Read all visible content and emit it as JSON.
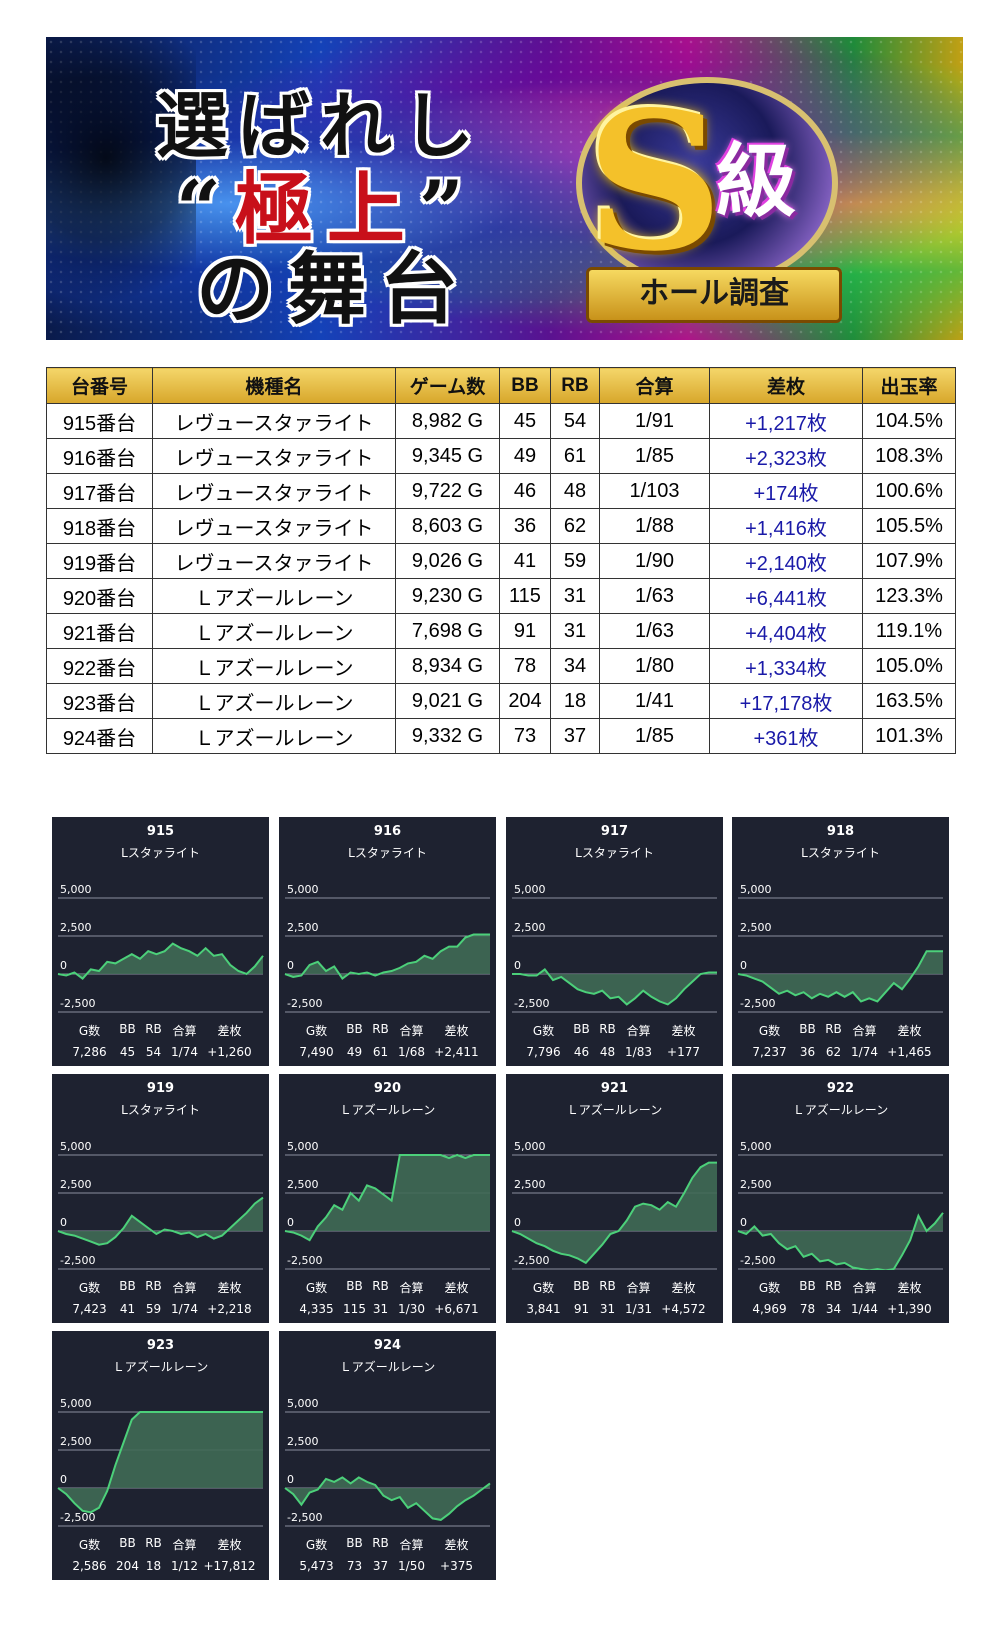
{
  "banner": {
    "line1": "選ばれし",
    "line2_pre": "“",
    "line2_main": "極上",
    "line2_post": "”",
    "line3": "の舞台",
    "emblem_s": "S",
    "emblem_kyu": "級",
    "emblem_ribbon": "ホール調査"
  },
  "table": {
    "headers": [
      "台番号",
      "機種名",
      "ゲーム数",
      "BB",
      "RB",
      "合算",
      "差枚",
      "出玉率"
    ],
    "rows": [
      [
        "915番台",
        "レヴュースタァライト",
        "8,982 G",
        "45",
        "54",
        "1/91",
        "+1,217枚",
        "104.5%"
      ],
      [
        "916番台",
        "レヴュースタァライト",
        "9,345 G",
        "49",
        "61",
        "1/85",
        "+2,323枚",
        "108.3%"
      ],
      [
        "917番台",
        "レヴュースタァライト",
        "9,722 G",
        "46",
        "48",
        "1/103",
        "+174枚",
        "100.6%"
      ],
      [
        "918番台",
        "レヴュースタァライト",
        "8,603 G",
        "36",
        "62",
        "1/88",
        "+1,416枚",
        "105.5%"
      ],
      [
        "919番台",
        "レヴュースタァライト",
        "9,026 G",
        "41",
        "59",
        "1/90",
        "+2,140枚",
        "107.9%"
      ],
      [
        "920番台",
        "Ｌアズールレーン",
        "9,230 G",
        "115",
        "31",
        "1/63",
        "+6,441枚",
        "123.3%"
      ],
      [
        "921番台",
        "Ｌアズールレーン",
        "7,698 G",
        "91",
        "31",
        "1/63",
        "+4,404枚",
        "119.1%"
      ],
      [
        "922番台",
        "Ｌアズールレーン",
        "8,934 G",
        "78",
        "34",
        "1/80",
        "+1,334枚",
        "105.0%"
      ],
      [
        "923番台",
        "Ｌアズールレーン",
        "9,021 G",
        "204",
        "18",
        "1/41",
        "+17,178枚",
        "163.5%"
      ],
      [
        "924番台",
        "Ｌアズールレーン",
        "9,332 G",
        "73",
        "37",
        "1/85",
        "+361枚",
        "101.3%"
      ]
    ]
  },
  "panel_labels": {
    "y_ticks": [
      "5,000",
      "2,500",
      "0",
      "-2,500"
    ],
    "stat_headers": [
      "G数",
      "BB",
      "RB",
      "合算",
      "差枚"
    ]
  },
  "chart_data": [
    {
      "type": "area",
      "number": "915",
      "name": "Lスタァライト",
      "stats": [
        "7,286",
        "45",
        "54",
        "1/74",
        "+1,260"
      ],
      "ylim": [
        -2500,
        5000
      ],
      "values": [
        0,
        -100,
        100,
        -300,
        300,
        200,
        800,
        700,
        1000,
        1300,
        1000,
        1500,
        1300,
        1500,
        2000,
        1700,
        1500,
        1200,
        1700,
        1200,
        1300,
        600,
        200,
        0,
        500,
        1200
      ]
    },
    {
      "type": "area",
      "number": "916",
      "name": "Lスタァライト",
      "stats": [
        "7,490",
        "49",
        "61",
        "1/68",
        "+2,411"
      ],
      "ylim": [
        -2500,
        5000
      ],
      "values": [
        0,
        -200,
        -100,
        600,
        800,
        200,
        500,
        -300,
        100,
        0,
        100,
        -100,
        100,
        200,
        400,
        700,
        800,
        1200,
        1000,
        1500,
        1800,
        1800,
        2400,
        2600,
        2600,
        2600
      ]
    },
    {
      "type": "area",
      "number": "917",
      "name": "Lスタァライト",
      "stats": [
        "7,796",
        "46",
        "48",
        "1/83",
        "+177"
      ],
      "ylim": [
        -2500,
        5000
      ],
      "values": [
        0,
        0,
        -100,
        -100,
        300,
        -400,
        -200,
        -600,
        -1000,
        -1200,
        -1300,
        -1100,
        -1600,
        -1500,
        -2000,
        -1600,
        -1100,
        -1500,
        -1800,
        -2000,
        -1600,
        -1000,
        -500,
        0,
        100,
        100
      ]
    },
    {
      "type": "area",
      "number": "918",
      "name": "Lスタァライト",
      "stats": [
        "7,237",
        "36",
        "62",
        "1/74",
        "+1,465"
      ],
      "ylim": [
        -2500,
        5000
      ],
      "values": [
        0,
        -100,
        -300,
        -500,
        -900,
        -1300,
        -1100,
        -1400,
        -1200,
        -1600,
        -1300,
        -1500,
        -1200,
        -1500,
        -1200,
        -1800,
        -1600,
        -1800,
        -1200,
        -600,
        -1000,
        -300,
        500,
        1500,
        1500,
        1500
      ]
    },
    {
      "type": "area",
      "number": "919",
      "name": "Lスタァライト",
      "stats": [
        "7,423",
        "41",
        "59",
        "1/74",
        "+2,218"
      ],
      "ylim": [
        -2500,
        5000
      ],
      "values": [
        0,
        -200,
        -300,
        -500,
        -700,
        -900,
        -800,
        -400,
        200,
        1000,
        600,
        200,
        -200,
        100,
        0,
        -200,
        -100,
        -400,
        -200,
        -500,
        -300,
        200,
        700,
        1200,
        1800,
        2200
      ]
    },
    {
      "type": "area",
      "number": "920",
      "name": "Ｌアズールレーン",
      "stats": [
        "4,335",
        "115",
        "31",
        "1/30",
        "+6,671"
      ],
      "ylim": [
        -2500,
        5000
      ],
      "values": [
        0,
        -100,
        -300,
        -600,
        300,
        900,
        1700,
        1400,
        2500,
        2000,
        3000,
        2800,
        2400,
        2000,
        5000,
        5000,
        5000,
        5000,
        5000,
        5000,
        4800,
        5000,
        4800,
        5000,
        5000,
        5000
      ]
    },
    {
      "type": "area",
      "number": "921",
      "name": "Ｌアズールレーン",
      "stats": [
        "3,841",
        "91",
        "31",
        "1/31",
        "+4,572"
      ],
      "ylim": [
        -2500,
        5000
      ],
      "values": [
        0,
        -200,
        -500,
        -800,
        -1000,
        -1300,
        -1500,
        -1600,
        -1800,
        -2100,
        -1500,
        -900,
        -200,
        0,
        700,
        1600,
        1800,
        1700,
        1400,
        1900,
        1600,
        2500,
        3500,
        4200,
        4500,
        4500
      ]
    },
    {
      "type": "area",
      "number": "922",
      "name": "Ｌアズールレーン",
      "stats": [
        "4,969",
        "78",
        "34",
        "1/44",
        "+1,390"
      ],
      "ylim": [
        -2500,
        5000
      ],
      "values": [
        0,
        -200,
        300,
        -300,
        -200,
        -800,
        -1200,
        -1000,
        -1700,
        -1500,
        -2000,
        -1900,
        -2200,
        -2100,
        -2400,
        -2500,
        -2600,
        -2500,
        -2600,
        -2500,
        -1600,
        -600,
        1000,
        0,
        500,
        1200
      ]
    },
    {
      "type": "area",
      "number": "923",
      "name": "Ｌアズールレーン",
      "stats": [
        "2,586",
        "204",
        "18",
        "1/12",
        "+17,812"
      ],
      "ylim": [
        -2500,
        5000
      ],
      "values": [
        0,
        -400,
        -1000,
        -1500,
        -1600,
        -1300,
        -200,
        1500,
        3000,
        4500,
        5000,
        5000,
        5000,
        5000,
        5000,
        5000,
        5000,
        5000,
        5000,
        5000,
        5000,
        5000,
        5000,
        5000,
        5000,
        5000
      ]
    },
    {
      "type": "area",
      "number": "924",
      "name": "Ｌアズールレーン",
      "stats": [
        "5,473",
        "73",
        "37",
        "1/50",
        "+375"
      ],
      "ylim": [
        -2500,
        5000
      ],
      "values": [
        0,
        -400,
        -1100,
        -300,
        -100,
        600,
        400,
        700,
        300,
        700,
        400,
        200,
        -500,
        -800,
        -600,
        -1300,
        -1000,
        -1500,
        -2000,
        -2100,
        -1700,
        -1200,
        -800,
        -500,
        -100,
        300
      ]
    }
  ]
}
